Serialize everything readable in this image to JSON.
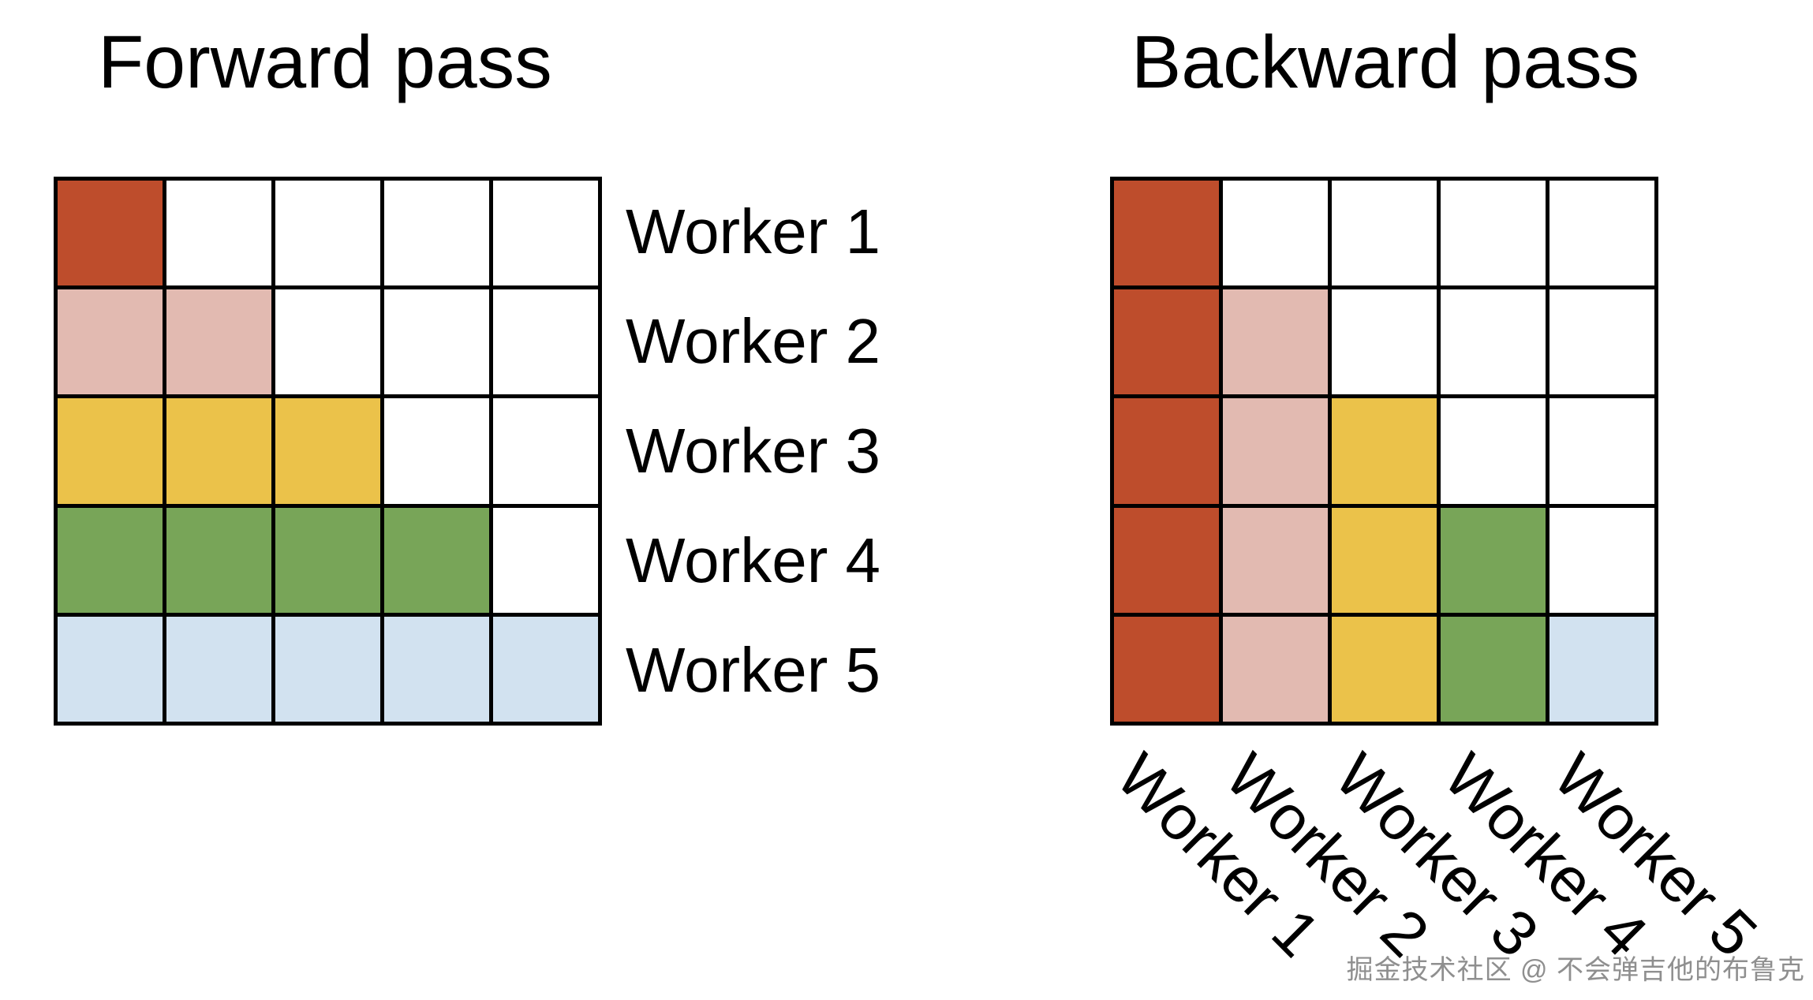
{
  "titles": {
    "forward": "Forward pass",
    "backward": "Backward pass"
  },
  "palette": {
    "red": "#BE4D2C",
    "pink": "#E2BAB1",
    "yellow": "#EBC24A",
    "green": "#78A558",
    "blue": "#D2E2F0",
    "white": "#FFFFFF",
    "grid_line": "#000000",
    "watermark_gray": "#8F8F8F"
  },
  "forward": {
    "row_labels": [
      "Worker 1",
      "Worker 2",
      "Worker 3",
      "Worker 4",
      "Worker 5"
    ],
    "cells": [
      [
        "red",
        "white",
        "white",
        "white",
        "white"
      ],
      [
        "pink",
        "pink",
        "white",
        "white",
        "white"
      ],
      [
        "yellow",
        "yellow",
        "yellow",
        "white",
        "white"
      ],
      [
        "green",
        "green",
        "green",
        "green",
        "white"
      ],
      [
        "blue",
        "blue",
        "blue",
        "blue",
        "blue"
      ]
    ]
  },
  "backward": {
    "col_labels": [
      "Worker 1",
      "Worker 2",
      "Worker 3",
      "Worker 4",
      "Worker 5"
    ],
    "cells": [
      [
        "red",
        "white",
        "white",
        "white",
        "white"
      ],
      [
        "red",
        "pink",
        "white",
        "white",
        "white"
      ],
      [
        "red",
        "pink",
        "yellow",
        "white",
        "white"
      ],
      [
        "red",
        "pink",
        "yellow",
        "green",
        "white"
      ],
      [
        "red",
        "pink",
        "yellow",
        "green",
        "blue"
      ]
    ]
  },
  "watermark": "掘金技术社区 @ 不会弹吉他的布鲁克"
}
